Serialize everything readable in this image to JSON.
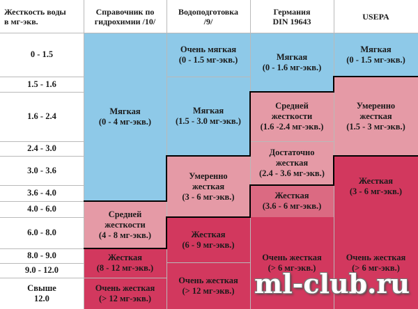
{
  "headers": {
    "hardness": "Жесткость воды\nв мг-экв.",
    "ref": "Справочник по\nгидрохимии /10/",
    "water": "Водоподготовка\n/9/",
    "din": "Германия\nDIN 19643",
    "usepa": "USEPA"
  },
  "bands": [
    "0 - 1.5",
    "1.5 - 1.6",
    "1.6 - 2.4",
    "2.4 - 3.0",
    "3.0 - 3.6",
    "3.6 - 4.0",
    "4.0 - 6.0",
    "6.0 - 8.0",
    "8.0 - 9.0",
    "9.0 - 12.0",
    "Свыше\n12.0"
  ],
  "col_ref": {
    "soft": "Мягкая\n(0 - 4 мг-экв.)",
    "medium": "Средней\nжесткости\n(4 - 8 мг-экв.)",
    "hard": "Жесткая\n(8 - 12 мг-экв.)",
    "very_hard": "Очень жесткая\n(> 12 мг-экв.)"
  },
  "col_water": {
    "very_soft": "Очень мягкая\n(0 - 1.5 мг-экв.)",
    "soft": "Мягкая\n(1.5 - 3.0 мг-экв.)",
    "moderate": "Умеренно\nжесткая\n(3 - 6 мг-экв.)",
    "hard": "Жесткая\n(6 - 9 мг-экв.)",
    "very_hard": "Очень жесткая\n(> 12 мг-экв.)"
  },
  "col_din": {
    "soft": "Мягкая\n(0 - 1.6 мг-экв.)",
    "medium": "Средней\nжесткости\n(1.6 -2.4 мг-экв.)",
    "fair": "Достаточно\nжесткая\n(2.4 - 3.6 мг-экв.)",
    "hard": "Жесткая\n(3.6 - 6 мг-экв.)",
    "very_hard": "Очень жесткая\n(> 6 мг-экв.)"
  },
  "col_usepa": {
    "soft": "Мягкая\n(0 - 1.5 мг-экв.)",
    "moderate": "Умеренно\nжесткая\n(1.5 - 3 мг-экв.)",
    "hard": "Жесткая\n(3 - 6 мг-экв.)",
    "very_hard": "Очень жесткая\n(> 6 мг-экв.)"
  },
  "watermark": "ml-club.ru",
  "colors": {
    "blue": "#8ec9e8",
    "light_pink": "#e59aa6",
    "pink": "#db6a82",
    "red": "#d2385e"
  }
}
